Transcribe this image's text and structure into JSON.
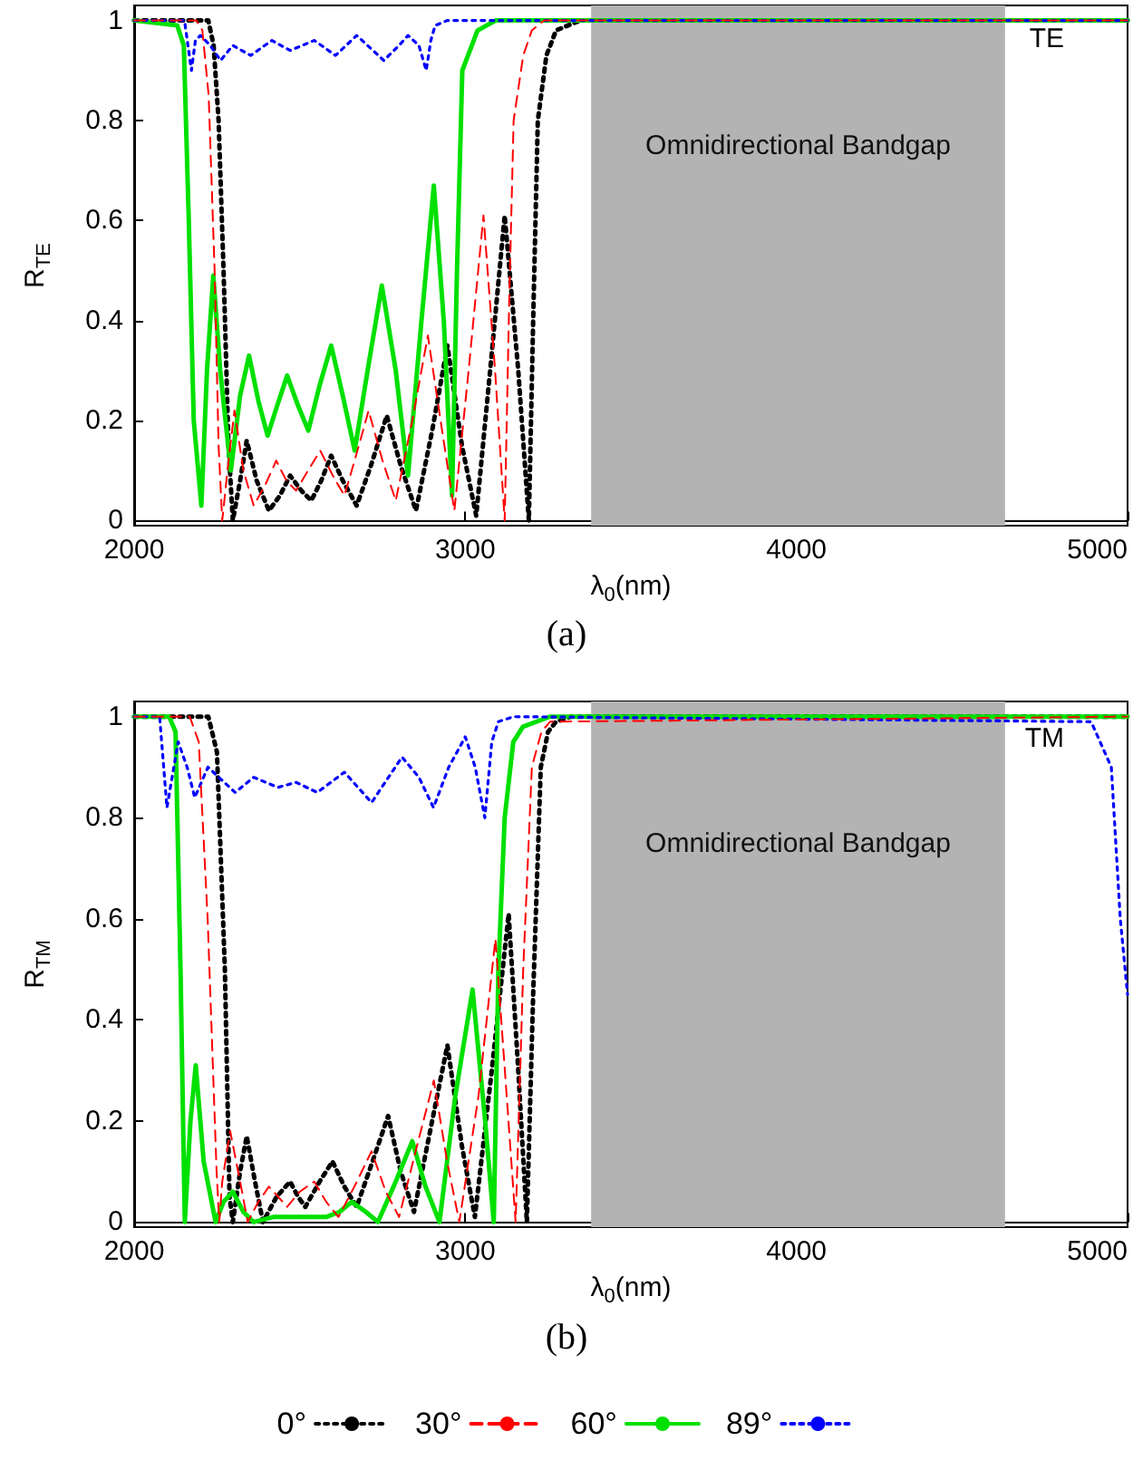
{
  "chart_data": [
    {
      "type": "line",
      "xlabel": "λ$_{0}$(nm)",
      "ylabel": "R$_{TE}$",
      "xlim": [
        2000,
        5000
      ],
      "ylim": [
        -0.01,
        1.03
      ],
      "xticks": [
        2000,
        3000,
        4000,
        5000
      ],
      "yticks": [
        0,
        0.2,
        0.4,
        0.6,
        0.8,
        1
      ],
      "grid": false,
      "marker": "none",
      "annotations": [
        "TE",
        "(a)"
      ],
      "bands": [
        {
          "axis": "x",
          "from": 3380,
          "to": 4630,
          "label": "Omnidirectional Bandgap",
          "color": "#b3b3b3"
        }
      ],
      "series": [
        {
          "color": "#000000",
          "line_style": "dotted",
          "x": [
            2000,
            2224,
            2240,
            2255,
            2270,
            2285,
            2298,
            2320,
            2340,
            2370,
            2407,
            2440,
            2471,
            2505,
            2535,
            2565,
            2595,
            2630,
            2672,
            2715,
            2763,
            2805,
            2851,
            2900,
            2946,
            2990,
            3033,
            3075,
            3119,
            3160,
            3192,
            3205,
            3219,
            3245,
            3274,
            3310,
            3347,
            5000
          ],
          "values": [
            1,
            1,
            0.95,
            0.8,
            0.5,
            0.15,
            0,
            0.08,
            0.16,
            0.08,
            0.02,
            0.05,
            0.09,
            0.06,
            0.04,
            0.08,
            0.13,
            0.08,
            0.03,
            0.11,
            0.21,
            0.11,
            0.02,
            0.18,
            0.35,
            0.15,
            0.01,
            0.3,
            0.61,
            0.3,
            0,
            0.4,
            0.8,
            0.93,
            0.98,
            0.99,
            1,
            1
          ]
        },
        {
          "color": "#ff0000",
          "line_style": "dashed",
          "x": [
            2000,
            2188,
            2206,
            2225,
            2243,
            2255,
            2266,
            2285,
            2303,
            2330,
            2361,
            2395,
            2429,
            2460,
            2489,
            2525,
            2562,
            2600,
            2635,
            2670,
            2708,
            2750,
            2790,
            2840,
            2887,
            2930,
            2967,
            3010,
            3055,
            3090,
            3119,
            3133,
            3146,
            3175,
            3201,
            3238,
            5000
          ],
          "values": [
            1,
            1,
            0.98,
            0.85,
            0.5,
            0.15,
            0,
            0.12,
            0.22,
            0.1,
            0.03,
            0.07,
            0.12,
            0.08,
            0.06,
            0.1,
            0.14,
            0.09,
            0.05,
            0.13,
            0.22,
            0.12,
            0.04,
            0.2,
            0.37,
            0.18,
            0.02,
            0.3,
            0.61,
            0.3,
            0,
            0.45,
            0.8,
            0.93,
            0.98,
            1,
            1
          ]
        },
        {
          "color": "#00e000",
          "line_style": "solid",
          "x": [
            2000,
            2130,
            2150,
            2165,
            2180,
            2203,
            2220,
            2239,
            2260,
            2292,
            2320,
            2347,
            2375,
            2403,
            2432,
            2462,
            2495,
            2526,
            2560,
            2595,
            2630,
            2666,
            2705,
            2748,
            2790,
            2827,
            2865,
            2905,
            2935,
            2960,
            2975,
            2991,
            3037,
            3092,
            5000
          ],
          "values": [
            1,
            0.99,
            0.95,
            0.6,
            0.2,
            0.03,
            0.3,
            0.49,
            0.3,
            0.1,
            0.25,
            0.33,
            0.24,
            0.17,
            0.23,
            0.29,
            0.23,
            0.18,
            0.27,
            0.35,
            0.25,
            0.14,
            0.3,
            0.47,
            0.3,
            0.09,
            0.38,
            0.67,
            0.4,
            0.05,
            0.5,
            0.9,
            0.98,
            1,
            1
          ]
        },
        {
          "color": "#0000ff",
          "line_style": "dotted",
          "x": [
            2000,
            2152,
            2173,
            2185,
            2200,
            2230,
            2261,
            2298,
            2352,
            2416,
            2471,
            2544,
            2608,
            2672,
            2754,
            2800,
            2827,
            2860,
            2882,
            2896,
            2909,
            2946,
            5000
          ],
          "values": [
            1,
            1,
            0.9,
            0.96,
            0.97,
            0.95,
            0.92,
            0.95,
            0.93,
            0.96,
            0.94,
            0.96,
            0.93,
            0.97,
            0.92,
            0.95,
            0.97,
            0.95,
            0.9,
            0.96,
            0.99,
            1,
            1
          ]
        }
      ]
    },
    {
      "type": "line",
      "xlabel": "λ$_{0}$(nm)",
      "ylabel": "R$_{TM}$",
      "xlim": [
        2000,
        5000
      ],
      "ylim": [
        -0.01,
        1.03
      ],
      "xticks": [
        2000,
        3000,
        4000,
        5000
      ],
      "yticks": [
        0,
        0.2,
        0.4,
        0.6,
        0.8,
        1
      ],
      "grid": false,
      "legend": "bottom",
      "marker": "none",
      "annotations": [
        "TM",
        "(b)"
      ],
      "bands": [
        {
          "axis": "x",
          "from": 3380,
          "to": 4630,
          "label": "Omnidirectional Bandgap",
          "color": "#b3b3b3"
        }
      ],
      "series": [
        {
          "name": "0°",
          "color": "#000000",
          "line_style": "dotted",
          "x": [
            2000,
            2224,
            2250,
            2274,
            2288,
            2298,
            2320,
            2340,
            2365,
            2389,
            2430,
            2471,
            2495,
            2517,
            2560,
            2599,
            2635,
            2672,
            2720,
            2767,
            2805,
            2845,
            2900,
            2946,
            2990,
            3029,
            3080,
            3131,
            3160,
            3186,
            3205,
            3228,
            3250,
            3274,
            3320,
            5000
          ],
          "values": [
            1,
            1,
            0.93,
            0.5,
            0.05,
            0,
            0.1,
            0.17,
            0.08,
            0,
            0.05,
            0.08,
            0.05,
            0.03,
            0.08,
            0.12,
            0.07,
            0.03,
            0.12,
            0.21,
            0.1,
            0.02,
            0.2,
            0.35,
            0.15,
            0.01,
            0.3,
            0.61,
            0.3,
            0,
            0.45,
            0.9,
            0.97,
            0.99,
            1,
            1
          ]
        },
        {
          "name": "30°",
          "color": "#ff0000",
          "line_style": "dashed",
          "x": [
            2000,
            2168,
            2195,
            2222,
            2249,
            2257,
            2266,
            2290,
            2320,
            2343,
            2375,
            2407,
            2435,
            2462,
            2500,
            2544,
            2580,
            2617,
            2665,
            2717,
            2760,
            2800,
            2850,
            2905,
            2945,
            2982,
            3040,
            3091,
            3125,
            3152,
            3175,
            3201,
            3230,
            3256,
            5000
          ],
          "values": [
            1,
            1,
            0.95,
            0.6,
            0.1,
            0,
            0.08,
            0.18,
            0.08,
            0,
            0.04,
            0.07,
            0.05,
            0.03,
            0.06,
            0.08,
            0.04,
            0.01,
            0.07,
            0.14,
            0.06,
            0.01,
            0.14,
            0.28,
            0.12,
            0,
            0.25,
            0.56,
            0.25,
            0,
            0.5,
            0.9,
            0.97,
            0.99,
            1
          ]
        },
        {
          "name": "60°",
          "color": "#00e000",
          "line_style": "solid",
          "x": [
            2000,
            2106,
            2125,
            2140,
            2153,
            2170,
            2186,
            2210,
            2246,
            2270,
            2298,
            2330,
            2361,
            2420,
            2500,
            2580,
            2620,
            2657,
            2700,
            2736,
            2790,
            2840,
            2880,
            2922,
            2970,
            3022,
            3060,
            3086,
            3100,
            3119,
            3145,
            3174,
            3256,
            5000
          ],
          "values": [
            1,
            1,
            0.97,
            0.5,
            0,
            0.2,
            0.31,
            0.12,
            0,
            0.04,
            0.06,
            0.02,
            0,
            0.01,
            0.01,
            0.01,
            0.02,
            0.04,
            0.02,
            0,
            0.08,
            0.16,
            0.07,
            0,
            0.25,
            0.46,
            0.2,
            0,
            0.5,
            0.8,
            0.95,
            0.98,
            1,
            1
          ]
        },
        {
          "name": "89°",
          "color": "#0000ff",
          "line_style": "dotted",
          "x": [
            2000,
            2077,
            2099,
            2133,
            2160,
            2183,
            2223,
            2305,
            2361,
            2434,
            2489,
            2553,
            2635,
            2717,
            2809,
            2860,
            2904,
            2950,
            3000,
            3030,
            3059,
            3080,
            3100,
            3146,
            4890,
            4951,
            4978,
            5000
          ],
          "values": [
            1,
            1,
            0.82,
            0.95,
            0.9,
            0.84,
            0.9,
            0.85,
            0.88,
            0.86,
            0.87,
            0.85,
            0.89,
            0.83,
            0.92,
            0.88,
            0.82,
            0.9,
            0.96,
            0.9,
            0.8,
            0.95,
            0.99,
            1,
            0.99,
            0.9,
            0.6,
            0.45
          ]
        }
      ]
    }
  ]
}
